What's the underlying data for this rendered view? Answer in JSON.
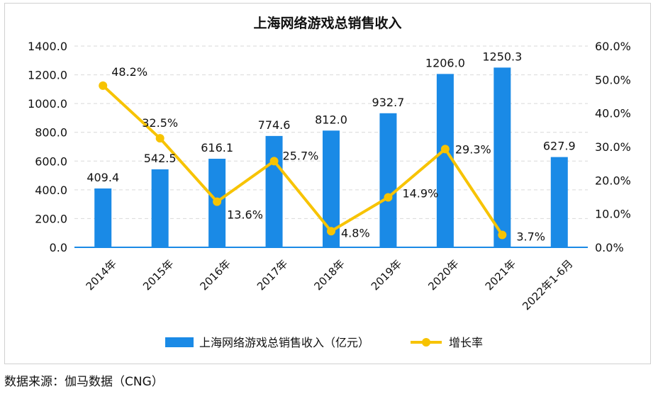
{
  "chart_data": {
    "type": "bar",
    "title": "上海网络游戏总销售收入",
    "categories": [
      "2014年",
      "2015年",
      "2016年",
      "2017年",
      "2018年",
      "2019年",
      "2020年",
      "2021年",
      "2022年1-6月"
    ],
    "series": [
      {
        "name": "上海网络游戏总销售收入（亿元）",
        "type": "bar",
        "axis": "left",
        "values": [
          409.4,
          542.5,
          616.1,
          774.6,
          812.0,
          932.7,
          1206.0,
          1250.3,
          627.9
        ],
        "labels": [
          "409.4",
          "542.5",
          "616.1",
          "774.6",
          "812.0",
          "932.7",
          "1206.0",
          "1250.3",
          "627.9"
        ]
      },
      {
        "name": "增长率",
        "type": "line",
        "axis": "right",
        "values": [
          48.2,
          32.5,
          13.6,
          25.7,
          4.8,
          14.9,
          29.3,
          3.7,
          null
        ],
        "labels": [
          "48.2%",
          "32.5%",
          "13.6%",
          "25.7%",
          "4.8%",
          "14.9%",
          "29.3%",
          "3.7%",
          null
        ]
      }
    ],
    "ylim": [
      0,
      1400
    ],
    "y2lim": [
      0,
      60
    ],
    "yticks": [
      "0.0",
      "200.0",
      "400.0",
      "600.0",
      "800.0",
      "1000.0",
      "1200.0",
      "1400.0"
    ],
    "y2ticks": [
      "0.0%",
      "10.0%",
      "20.0%",
      "30.0%",
      "40.0%",
      "50.0%",
      "60.0%"
    ],
    "grid": true,
    "legend": "bottom",
    "colors": {
      "bar": "#1a8ae6",
      "line": "#f7c300",
      "axis": "#1a8ae6",
      "grid": "#d9d9d9"
    }
  },
  "source": "数据来源：伽马数据（CNG）"
}
